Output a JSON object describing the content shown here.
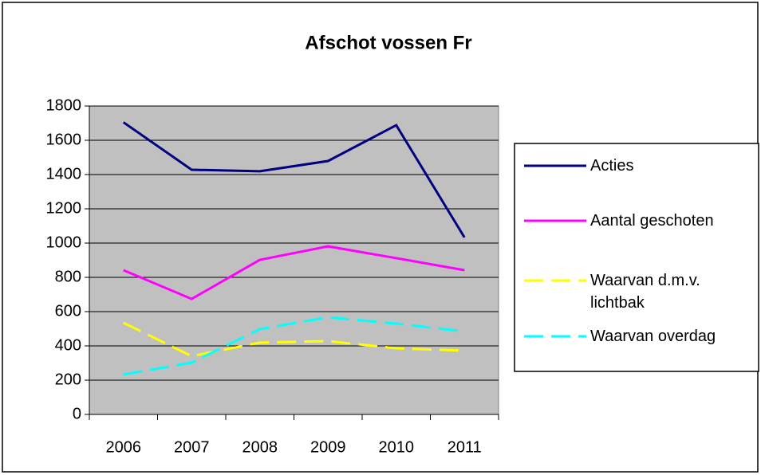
{
  "chart_data": {
    "type": "line",
    "title": "Afschot vossen Fr",
    "categories": [
      "2006",
      "2007",
      "2008",
      "2009",
      "2010",
      "2011"
    ],
    "series": [
      {
        "name": "Acties",
        "color": "#000080",
        "dashed": false,
        "values": [
          1705,
          1428,
          1419,
          1479,
          1688,
          1033
        ]
      },
      {
        "name": "Aantal geschoten",
        "color": "#FF00FF",
        "dashed": false,
        "values": [
          842,
          674,
          902,
          981,
          912,
          842
        ]
      },
      {
        "name": "Waarvan d.m.v. lichtbak",
        "color": "#FFFF00",
        "dashed": true,
        "values": [
          535,
          340,
          419,
          428,
          386,
          372
        ]
      },
      {
        "name": "Waarvan overdag",
        "color": "#00FFFF",
        "dashed": true,
        "values": [
          233,
          302,
          498,
          567,
          530,
          484
        ]
      }
    ],
    "ylim": [
      0,
      1800
    ],
    "yticks": [
      0,
      200,
      400,
      600,
      800,
      1000,
      1200,
      1400,
      1600,
      1800
    ],
    "grid": true,
    "legend": "right"
  }
}
